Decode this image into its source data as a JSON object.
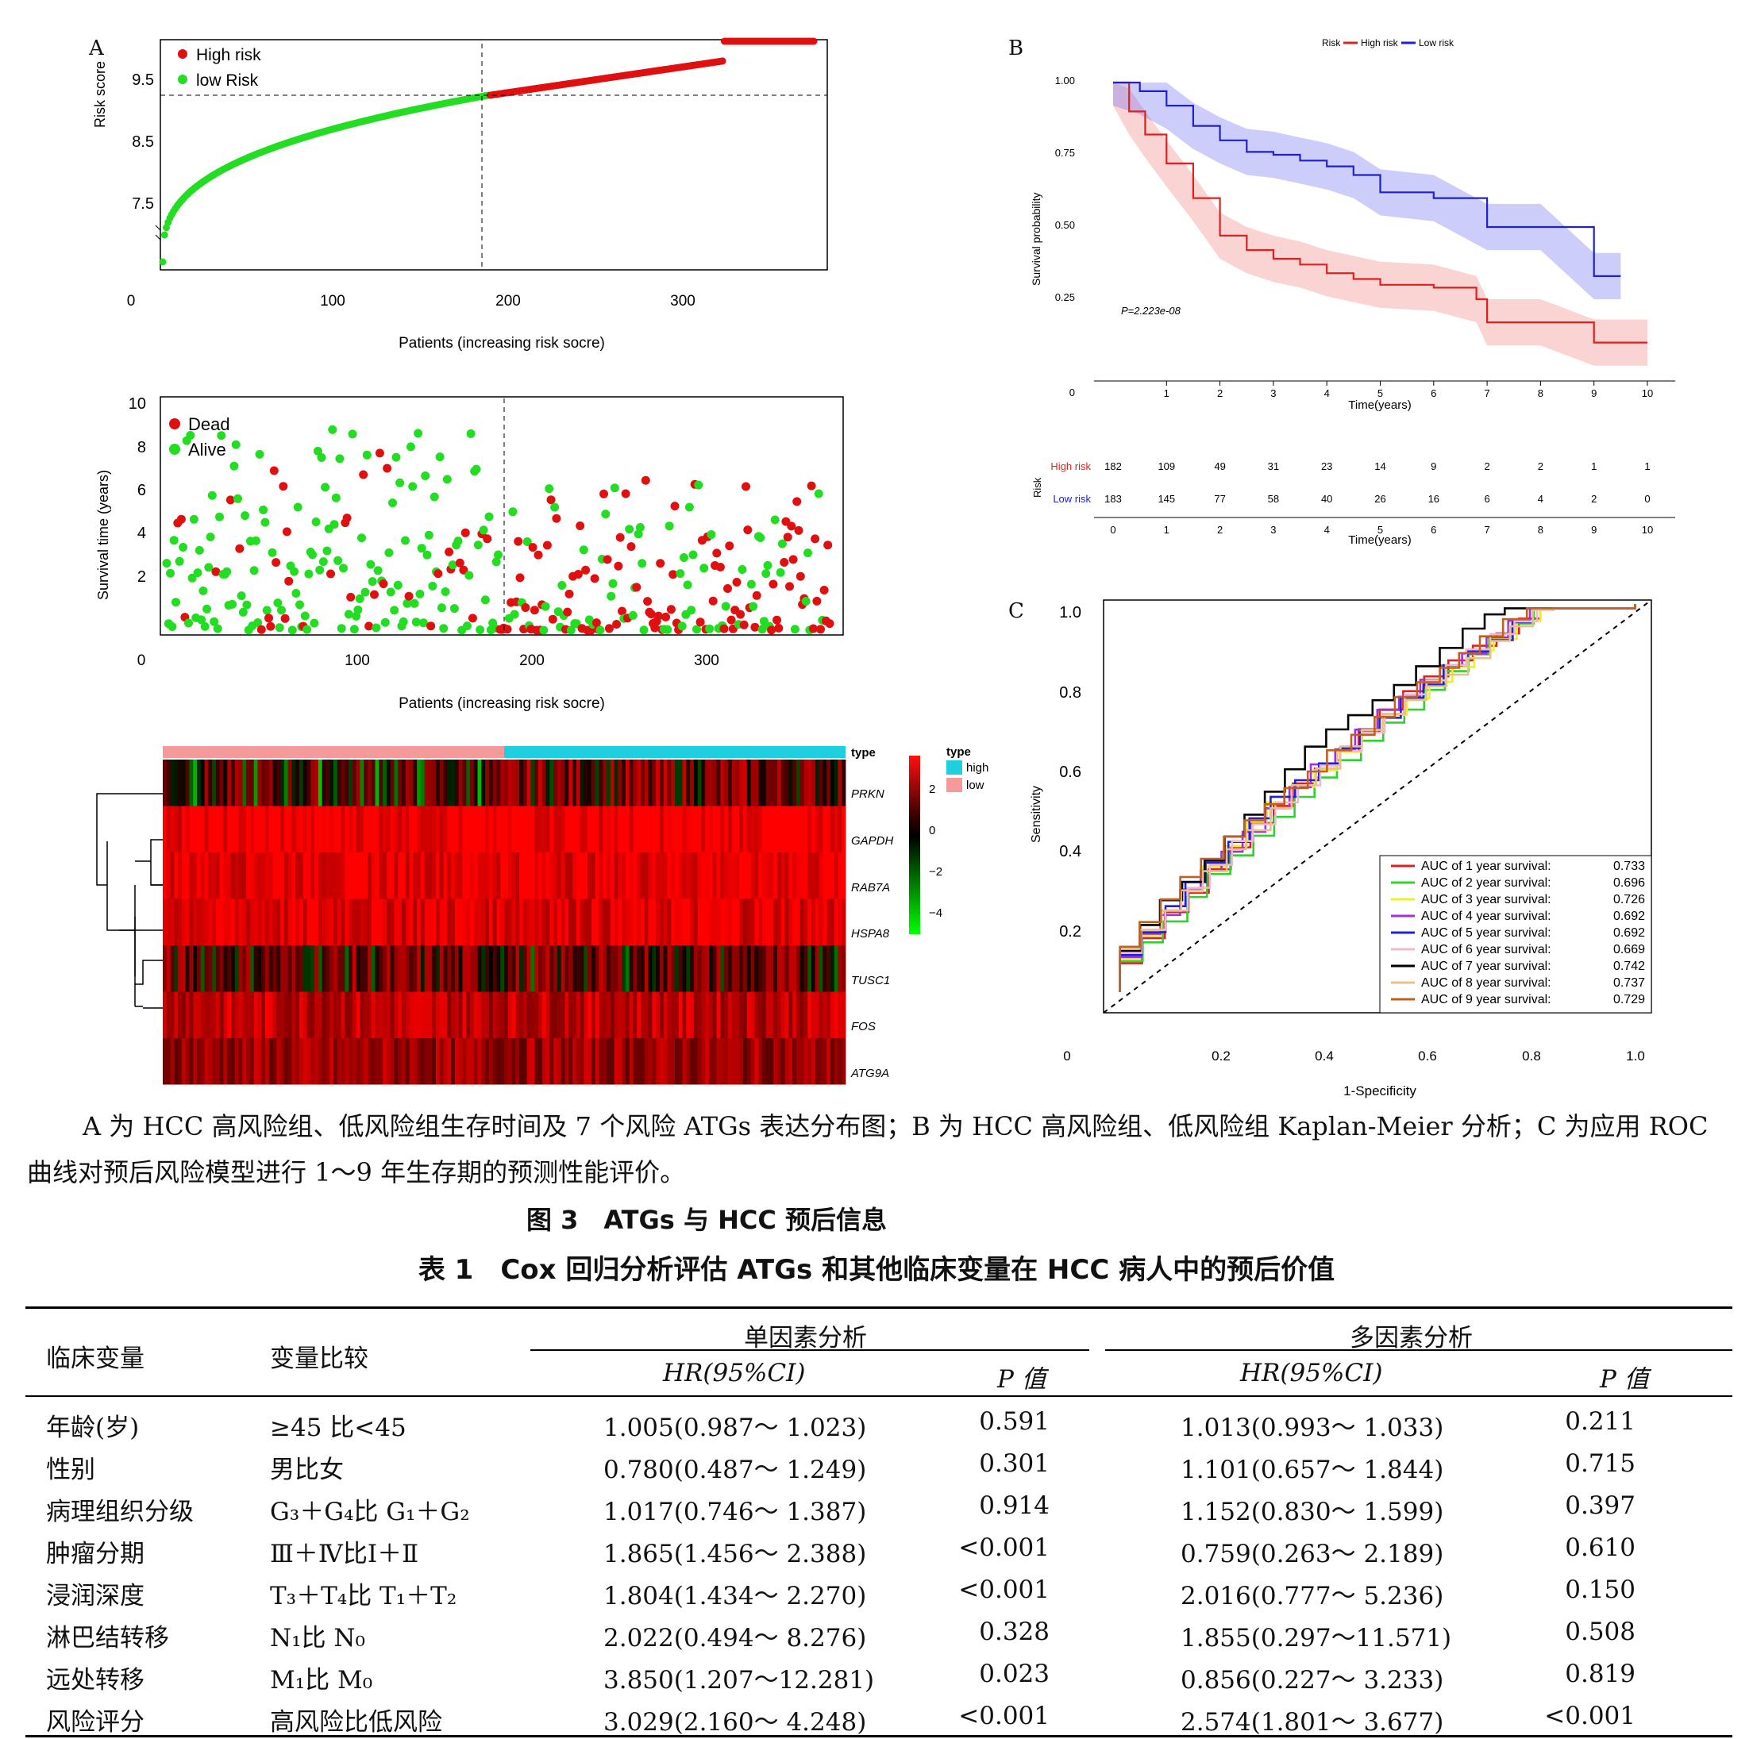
{
  "panel_labels": {
    "a": "A",
    "b": "B",
    "c": "C"
  },
  "risk_score_plot": {
    "ylabel": "Risk score",
    "xlabel": "Patients (increasing risk socre)",
    "yticks": [
      "9.5",
      "8.5",
      "7.5"
    ],
    "xticks": [
      "0",
      "100",
      "200",
      "300"
    ],
    "legend": [
      {
        "label": "High risk",
        "color": "#e01010"
      },
      {
        "label": "low Risk",
        "color": "#22dd22"
      }
    ]
  },
  "survival_time_plot": {
    "ylabel": "Survival time (years)",
    "xlabel": "Patients (increasing risk socre)",
    "yticks": [
      "10",
      "8",
      "6",
      "4",
      "2"
    ],
    "xticks": [
      "0",
      "100",
      "200",
      "300"
    ],
    "legend": [
      {
        "label": "Dead",
        "color": "#e01010"
      },
      {
        "label": "Alive",
        "color": "#22dd22"
      }
    ]
  },
  "heatmap": {
    "genes": [
      "PRKN",
      "GAPDH",
      "RAB7A",
      "HSPA8",
      "TUSC1",
      "FOS",
      "ATG9A"
    ],
    "type_label": "type",
    "legend_title": "type",
    "legend_items": [
      {
        "label": "high",
        "color": "#1ecfe0"
      },
      {
        "label": "low",
        "color": "#f49a9a"
      }
    ],
    "scale_ticks": [
      "2",
      "0",
      "−2",
      "−4"
    ]
  },
  "km_plot": {
    "legend_title": "Risk",
    "legend_items": [
      {
        "label": "High risk",
        "color": "#e02020"
      },
      {
        "label": "Low risk",
        "color": "#2020d0"
      }
    ],
    "ylabel": "Survival probability",
    "xlabel": "Time(years)",
    "yticks": [
      "1.00",
      "0.75",
      "0.50",
      "0.25",
      "0"
    ],
    "xticks": [
      "1",
      "2",
      "3",
      "4",
      "5",
      "6",
      "7",
      "8",
      "9",
      "10"
    ],
    "pvalue": "P=2.223e-08",
    "risk_table": {
      "ylabel": "Risk",
      "xlabel": "Time(years)",
      "rows": [
        {
          "label": "High risk",
          "color": "#e02020",
          "values": [
            "182",
            "109",
            "49",
            "31",
            "23",
            "14",
            "9",
            "2",
            "2",
            "1",
            "1"
          ]
        },
        {
          "label": "Low risk",
          "color": "#2020d0",
          "values": [
            "183",
            "145",
            "77",
            "58",
            "40",
            "26",
            "16",
            "6",
            "4",
            "2",
            "0"
          ]
        }
      ],
      "xticks": [
        "0",
        "1",
        "2",
        "3",
        "4",
        "5",
        "6",
        "7",
        "8",
        "9",
        "10"
      ]
    }
  },
  "roc_plot": {
    "ylabel": "Sensitivity",
    "xlabel": "1-Specificity",
    "yticks": [
      "1.0",
      "0.8",
      "0.6",
      "0.4",
      "0.2"
    ],
    "xticks": [
      "0",
      "0.2",
      "0.4",
      "0.6",
      "0.8",
      "1.0"
    ],
    "legend": [
      {
        "label": "AUC of 1 year survival:",
        "value": "0.733",
        "color": "#e02020"
      },
      {
        "label": "AUC of 2 year survival:",
        "value": "0.696",
        "color": "#30d030"
      },
      {
        "label": "AUC of 3 year survival:",
        "value": "0.726",
        "color": "#f0f020"
      },
      {
        "label": "AUC of 4 year survival:",
        "value": "0.692",
        "color": "#a030e0"
      },
      {
        "label": "AUC of 5 year survival:",
        "value": "0.692",
        "color": "#2020e0"
      },
      {
        "label": "AUC of 6 year survival:",
        "value": "0.669",
        "color": "#f0b8d0"
      },
      {
        "label": "AUC of 7 year survival:",
        "value": "0.742",
        "color": "#000000"
      },
      {
        "label": "AUC of 8 year survival:",
        "value": "0.737",
        "color": "#e8c090"
      },
      {
        "label": "AUC of 9 year survival:",
        "value": "0.729",
        "color": "#c06020"
      }
    ]
  },
  "caption": {
    "line1": "A 为 HCC 高风险组、低风险组生存时间及 7 个风险 ATGs 表达分布图；B 为 HCC 高风险组、低风险组 Kaplan-Meier 分析；C 为应用 ROC",
    "line2": "曲线对预后风险模型进行 1～9 年生存期的预测性能评价。",
    "figure_title": "图 3　ATGs 与 HCC 预后信息",
    "table_title": "表 1　Cox 回归分析评估 ATGs 和其他临床变量在 HCC 病人中的预后价值"
  },
  "table": {
    "col_var": "临床变量",
    "col_cmp": "变量比较",
    "uni_header": "单因素分析",
    "multi_header": "多因素分析",
    "hr_label": "HR(95%CI)",
    "p_label": "P 值",
    "rows": [
      {
        "var": "年龄(岁)",
        "cmp": "≥45 比<45",
        "uni_hr": "1.005(0.987～ 1.023)",
        "uni_p": "0.591",
        "multi_hr": "1.013(0.993～ 1.033)",
        "multi_p": "0.211"
      },
      {
        "var": "性别",
        "cmp": "男比女",
        "uni_hr": "0.780(0.487～ 1.249)",
        "uni_p": "0.301",
        "multi_hr": "1.101(0.657～ 1.844)",
        "multi_p": "0.715"
      },
      {
        "var": "病理组织分级",
        "cmp": "G₃＋G₄比 G₁＋G₂",
        "uni_hr": "1.017(0.746～ 1.387)",
        "uni_p": "0.914",
        "multi_hr": "1.152(0.830～ 1.599)",
        "multi_p": "0.397"
      },
      {
        "var": "肿瘤分期",
        "cmp": "Ⅲ＋Ⅳ比Ⅰ＋Ⅱ",
        "uni_hr": "1.865(1.456～ 2.388)",
        "uni_p": "<0.001",
        "multi_hr": "0.759(0.263～ 2.189)",
        "multi_p": "0.610"
      },
      {
        "var": "浸润深度",
        "cmp": "T₃＋T₄比 T₁＋T₂",
        "uni_hr": "1.804(1.434～ 2.270)",
        "uni_p": "<0.001",
        "multi_hr": "2.016(0.777～ 5.236)",
        "multi_p": "0.150"
      },
      {
        "var": "淋巴结转移",
        "cmp": "N₁比 N₀",
        "uni_hr": "2.022(0.494～ 8.276)",
        "uni_p": "0.328",
        "multi_hr": "1.855(0.297～11.571)",
        "multi_p": "0.508"
      },
      {
        "var": "远处转移",
        "cmp": "M₁比 M₀",
        "uni_hr": "3.850(1.207～12.281)",
        "uni_p": "0.023",
        "multi_hr": "0.856(0.227～ 3.233)",
        "multi_p": "0.819"
      },
      {
        "var": "风险评分",
        "cmp": "高风险比低风险",
        "uni_hr": "3.029(2.160～ 4.248)",
        "uni_p": "<0.001",
        "multi_hr": "2.574(1.801～ 3.677)",
        "multi_p": "<0.001"
      }
    ]
  }
}
